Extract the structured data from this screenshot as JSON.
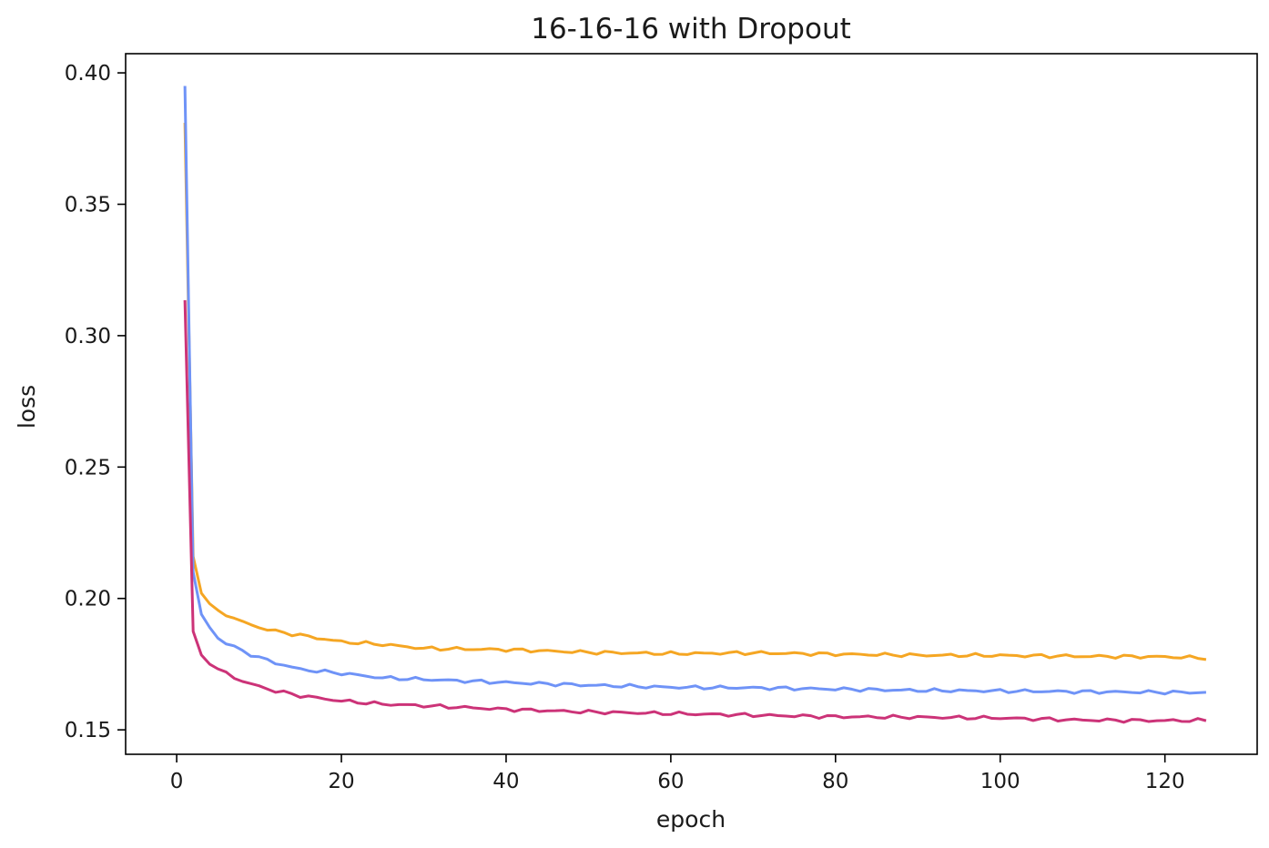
{
  "chart_data": {
    "type": "line",
    "title": "16-16-16 with Dropout",
    "xlabel": "epoch",
    "ylabel": "loss",
    "xlim": [
      -6.2,
      131.2
    ],
    "ylim": [
      0.1407,
      0.4073
    ],
    "grid": false,
    "legend": "none",
    "xticks": [
      0,
      20,
      40,
      60,
      80,
      100,
      120
    ],
    "yticks": [
      0.15,
      0.2,
      0.25,
      0.3,
      0.35,
      0.4
    ],
    "ytick_labels": [
      "0.15",
      "0.20",
      "0.25",
      "0.30",
      "0.35",
      "0.40"
    ],
    "series": [
      {
        "color": "#f5a623",
        "anchors": [
          [
            1,
            0.381
          ],
          [
            2,
            0.216
          ],
          [
            3,
            0.202
          ],
          [
            4,
            0.198
          ],
          [
            5,
            0.195
          ],
          [
            6,
            0.194
          ],
          [
            8,
            0.191
          ],
          [
            10,
            0.189
          ],
          [
            12,
            0.1875
          ],
          [
            15,
            0.186
          ],
          [
            20,
            0.1835
          ],
          [
            25,
            0.1825
          ],
          [
            30,
            0.181
          ],
          [
            40,
            0.1805
          ],
          [
            50,
            0.1795
          ],
          [
            60,
            0.179
          ],
          [
            70,
            0.1793
          ],
          [
            80,
            0.1788
          ],
          [
            90,
            0.1784
          ],
          [
            100,
            0.1783
          ],
          [
            110,
            0.178
          ],
          [
            120,
            0.1778
          ],
          [
            125,
            0.1773
          ]
        ]
      },
      {
        "color": "#6f93f7",
        "anchors": [
          [
            1,
            0.395
          ],
          [
            2,
            0.21
          ],
          [
            3,
            0.194
          ],
          [
            4,
            0.189
          ],
          [
            5,
            0.185
          ],
          [
            6,
            0.183
          ],
          [
            8,
            0.18
          ],
          [
            10,
            0.1775
          ],
          [
            12,
            0.1755
          ],
          [
            15,
            0.173
          ],
          [
            20,
            0.1715
          ],
          [
            25,
            0.1698
          ],
          [
            30,
            0.1692
          ],
          [
            40,
            0.168
          ],
          [
            50,
            0.167
          ],
          [
            60,
            0.1662
          ],
          [
            70,
            0.166
          ],
          [
            80,
            0.1655
          ],
          [
            90,
            0.165
          ],
          [
            100,
            0.1648
          ],
          [
            110,
            0.1645
          ],
          [
            120,
            0.1643
          ],
          [
            125,
            0.1642
          ]
        ]
      },
      {
        "color": "#cc3378",
        "anchors": [
          [
            1,
            0.3135
          ],
          [
            2,
            0.1875
          ],
          [
            3,
            0.1785
          ],
          [
            4,
            0.175
          ],
          [
            5,
            0.173
          ],
          [
            6,
            0.1715
          ],
          [
            8,
            0.1685
          ],
          [
            10,
            0.1665
          ],
          [
            12,
            0.1648
          ],
          [
            15,
            0.163
          ],
          [
            20,
            0.161
          ],
          [
            25,
            0.1598
          ],
          [
            30,
            0.1592
          ],
          [
            40,
            0.1578
          ],
          [
            50,
            0.1568
          ],
          [
            60,
            0.1562
          ],
          [
            70,
            0.1556
          ],
          [
            80,
            0.155
          ],
          [
            90,
            0.1548
          ],
          [
            100,
            0.1545
          ],
          [
            110,
            0.1537
          ],
          [
            120,
            0.1535
          ],
          [
            125,
            0.1536
          ]
        ]
      }
    ]
  }
}
